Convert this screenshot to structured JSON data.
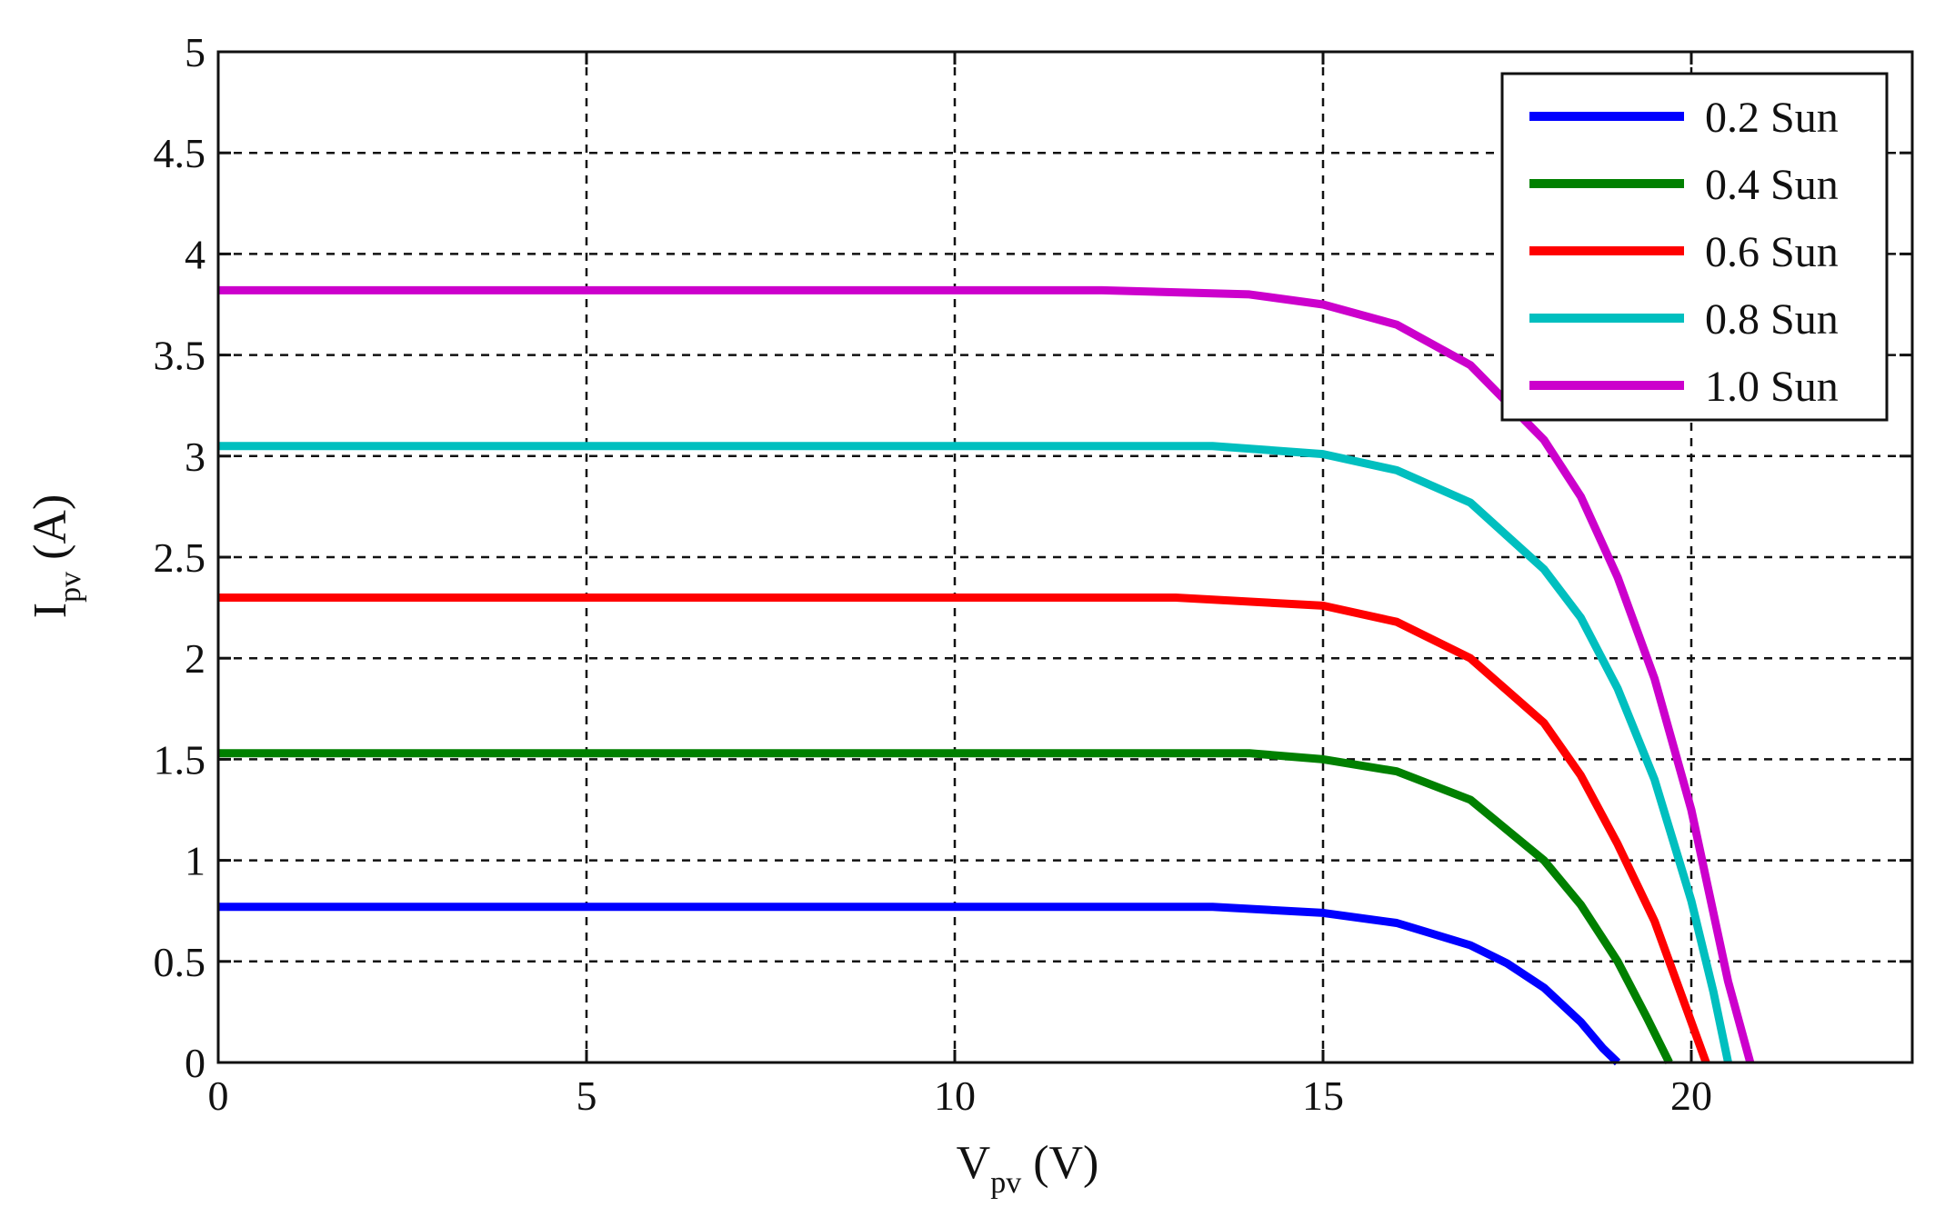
{
  "chart_data": {
    "type": "line",
    "title": "",
    "xlabel": {
      "main": "V",
      "sub": "pv",
      "unit": " (V)"
    },
    "ylabel": {
      "main": "I",
      "sub": "pv",
      "unit": " (A)"
    },
    "xlim": [
      0,
      23
    ],
    "ylim": [
      0,
      5
    ],
    "xticks": [
      0,
      5,
      10,
      15,
      20
    ],
    "xtick_labels": [
      "0",
      "5",
      "10",
      "15",
      "20"
    ],
    "yticks": [
      0,
      0.5,
      1,
      1.5,
      2,
      2.5,
      3,
      3.5,
      4,
      4.5,
      5
    ],
    "ytick_labels": [
      "0",
      "0.5",
      "1",
      "1.5",
      "2",
      "2.5",
      "3",
      "3.5",
      "4",
      "4.5",
      "5"
    ],
    "grid": true,
    "grid_style": "dashed",
    "legend_position": "top-right",
    "series": [
      {
        "name": "0.2 Sun",
        "color": "#0000ff",
        "x": [
          0,
          13.5,
          15,
          16,
          17,
          17.5,
          18,
          18.5,
          18.8,
          19.0
        ],
        "y": [
          0.77,
          0.77,
          0.74,
          0.69,
          0.58,
          0.49,
          0.37,
          0.2,
          0.07,
          0
        ]
      },
      {
        "name": "0.4 Sun",
        "color": "#008000",
        "x": [
          0,
          14,
          15,
          16,
          17,
          18,
          18.5,
          19,
          19.4,
          19.7
        ],
        "y": [
          1.53,
          1.53,
          1.5,
          1.44,
          1.3,
          1.0,
          0.78,
          0.5,
          0.22,
          0
        ]
      },
      {
        "name": "0.6 Sun",
        "color": "#ff0000",
        "x": [
          0,
          13,
          15,
          16,
          17,
          18,
          18.5,
          19,
          19.5,
          20,
          20.2
        ],
        "y": [
          2.3,
          2.3,
          2.26,
          2.18,
          2.0,
          1.68,
          1.42,
          1.08,
          0.7,
          0.2,
          0
        ]
      },
      {
        "name": "0.8 Sun",
        "color": "#00bfbf",
        "x": [
          0,
          13.5,
          15,
          16,
          17,
          18,
          18.5,
          19,
          19.5,
          20,
          20.3,
          20.5
        ],
        "y": [
          3.05,
          3.05,
          3.01,
          2.93,
          2.77,
          2.44,
          2.2,
          1.85,
          1.4,
          0.8,
          0.35,
          0
        ]
      },
      {
        "name": "1.0 Sun",
        "color": "#cc00cc",
        "x": [
          0,
          12,
          14,
          15,
          16,
          17,
          18,
          18.5,
          19,
          19.5,
          20,
          20.5,
          20.8
        ],
        "y": [
          3.82,
          3.82,
          3.8,
          3.75,
          3.65,
          3.45,
          3.08,
          2.8,
          2.4,
          1.9,
          1.25,
          0.4,
          0
        ]
      }
    ]
  }
}
